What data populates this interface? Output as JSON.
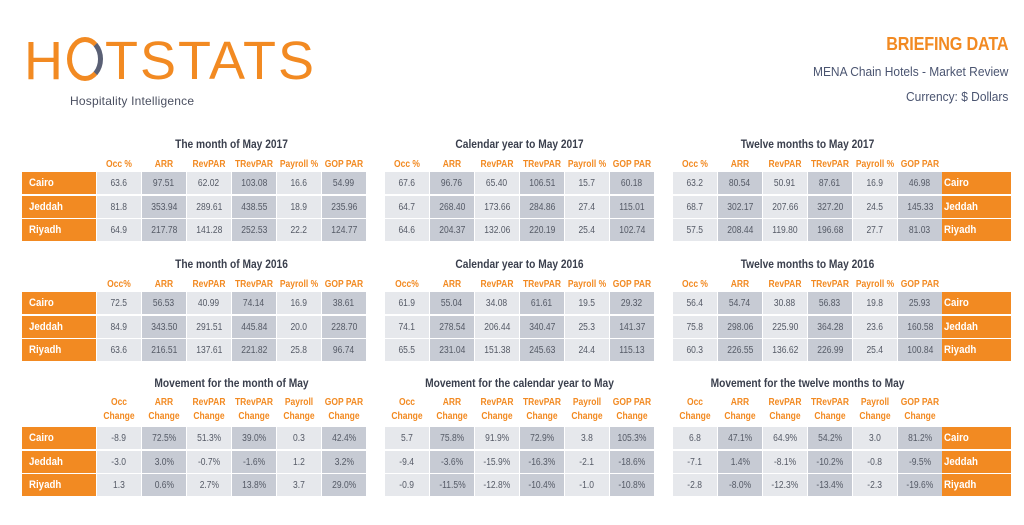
{
  "header": {
    "logo_text_left": "H",
    "logo_text_right": "TSTATS",
    "logo_tagline": "Hospitality Intelligence",
    "title": "BRIEFING DATA",
    "subtitle": "MENA Chain Hotels - Market Review",
    "currency": "Currency: $ Dollars"
  },
  "colors": {
    "accent": "#f28a22",
    "cell_light": "#e6e8ec",
    "cell_dark": "#c7cbd4",
    "title_text": "#3a3f4d",
    "value_text": "#555a66"
  },
  "cities": [
    "Cairo",
    "Jeddah",
    "Riyadh"
  ],
  "panels": [
    {
      "title": "The month of May 2017",
      "headers": [
        "Occ %",
        "ARR",
        "RevPAR",
        "TRevPAR",
        "Payroll %",
        "GOP PAR"
      ],
      "rows": [
        [
          "63.6",
          "97.51",
          "62.02",
          "103.08",
          "16.6",
          "54.99"
        ],
        [
          "81.8",
          "353.94",
          "289.61",
          "438.55",
          "18.9",
          "235.96"
        ],
        [
          "64.9",
          "217.78",
          "141.28",
          "252.53",
          "22.2",
          "124.77"
        ]
      ]
    },
    {
      "title": "Calendar year to May 2017",
      "headers": [
        "Occ %",
        "ARR",
        "RevPAR",
        "TRevPAR",
        "Payroll %",
        "GOP PAR"
      ],
      "rows": [
        [
          "67.6",
          "96.76",
          "65.40",
          "106.51",
          "15.7",
          "60.18"
        ],
        [
          "64.7",
          "268.40",
          "173.66",
          "284.86",
          "27.4",
          "115.01"
        ],
        [
          "64.6",
          "204.37",
          "132.06",
          "220.19",
          "25.4",
          "102.74"
        ]
      ]
    },
    {
      "title": "Twelve months to May 2017",
      "headers": [
        "Occ %",
        "ARR",
        "RevPAR",
        "TRevPAR",
        "Payroll %",
        "GOP PAR"
      ],
      "rows": [
        [
          "63.2",
          "80.54",
          "50.91",
          "87.61",
          "16.9",
          "46.98"
        ],
        [
          "68.7",
          "302.17",
          "207.66",
          "327.20",
          "24.5",
          "145.33"
        ],
        [
          "57.5",
          "208.44",
          "119.80",
          "196.68",
          "27.7",
          "81.03"
        ]
      ]
    },
    {
      "title": "The month of May 2016",
      "headers": [
        "Occ%",
        "ARR",
        "RevPAR",
        "TRevPAR",
        "Payroll %",
        "GOP PAR"
      ],
      "rows": [
        [
          "72.5",
          "56.53",
          "40.99",
          "74.14",
          "16.9",
          "38.61"
        ],
        [
          "84.9",
          "343.50",
          "291.51",
          "445.84",
          "20.0",
          "228.70"
        ],
        [
          "63.6",
          "216.51",
          "137.61",
          "221.82",
          "25.8",
          "96.74"
        ]
      ]
    },
    {
      "title": "Calendar year to May 2016",
      "headers": [
        "Occ%",
        "ARR",
        "RevPAR",
        "TRevPAR",
        "Payroll %",
        "GOP PAR"
      ],
      "rows": [
        [
          "61.9",
          "55.04",
          "34.08",
          "61.61",
          "19.5",
          "29.32"
        ],
        [
          "74.1",
          "278.54",
          "206.44",
          "340.47",
          "25.3",
          "141.37"
        ],
        [
          "65.5",
          "231.04",
          "151.38",
          "245.63",
          "24.4",
          "115.13"
        ]
      ]
    },
    {
      "title": "Twelve months to May 2016",
      "headers": [
        "Occ %",
        "ARR",
        "RevPAR",
        "TRevPAR",
        "Payroll %",
        "GOP PAR"
      ],
      "rows": [
        [
          "56.4",
          "54.74",
          "30.88",
          "56.83",
          "19.8",
          "25.93"
        ],
        [
          "75.8",
          "298.06",
          "225.90",
          "364.28",
          "23.6",
          "160.58"
        ],
        [
          "60.3",
          "226.55",
          "136.62",
          "226.99",
          "25.4",
          "100.84"
        ]
      ]
    },
    {
      "title": "Movement for the month of May",
      "headers": [
        "Occ\nChange",
        "ARR\nChange",
        "RevPAR\nChange",
        "TRevPAR\nChange",
        "Payroll\nChange",
        "GOP PAR\nChange"
      ],
      "headers_line1": [
        "Occ",
        "ARR",
        "RevPAR",
        "TRevPAR",
        "Payroll",
        "GOP PAR"
      ],
      "headers_line2": [
        "Change",
        "Change",
        "Change",
        "Change",
        "Change",
        "Change"
      ],
      "rows": [
        [
          "-8.9",
          "72.5%",
          "51.3%",
          "39.0%",
          "0.3",
          "42.4%"
        ],
        [
          "-3.0",
          "3.0%",
          "-0.7%",
          "-1.6%",
          "1.2",
          "3.2%"
        ],
        [
          "1.3",
          "0.6%",
          "2.7%",
          "13.8%",
          "3.7",
          "29.0%"
        ]
      ]
    },
    {
      "title": "Movement for the calendar year to May",
      "headers_line1": [
        "Occ",
        "ARR",
        "RevPAR",
        "TRevPAR",
        "Payroll",
        "GOP PAR"
      ],
      "headers_line2": [
        "Change",
        "Change",
        "Change",
        "Change",
        "Change",
        "Change"
      ],
      "rows": [
        [
          "5.7",
          "75.8%",
          "91.9%",
          "72.9%",
          "3.8",
          "105.3%"
        ],
        [
          "-9.4",
          "-3.6%",
          "-15.9%",
          "-16.3%",
          "-2.1",
          "-18.6%"
        ],
        [
          "-0.9",
          "-11.5%",
          "-12.8%",
          "-10.4%",
          "-1.0",
          "-10.8%"
        ]
      ]
    },
    {
      "title": "Movement for the twelve months to May",
      "headers_line1": [
        "Occ",
        "ARR",
        "RevPAR",
        "TRevPAR",
        "Payroll",
        "GOP PAR"
      ],
      "headers_line2": [
        "Change",
        "Change",
        "Change",
        "Change",
        "Change",
        "Change"
      ],
      "rows": [
        [
          "6.8",
          "47.1%",
          "64.9%",
          "54.2%",
          "3.0",
          "81.2%"
        ],
        [
          "-7.1",
          "1.4%",
          "-8.1%",
          "-10.2%",
          "-0.8",
          "-9.5%"
        ],
        [
          "-2.8",
          "-8.0%",
          "-12.3%",
          "-13.4%",
          "-2.3",
          "-19.6%"
        ]
      ]
    }
  ]
}
